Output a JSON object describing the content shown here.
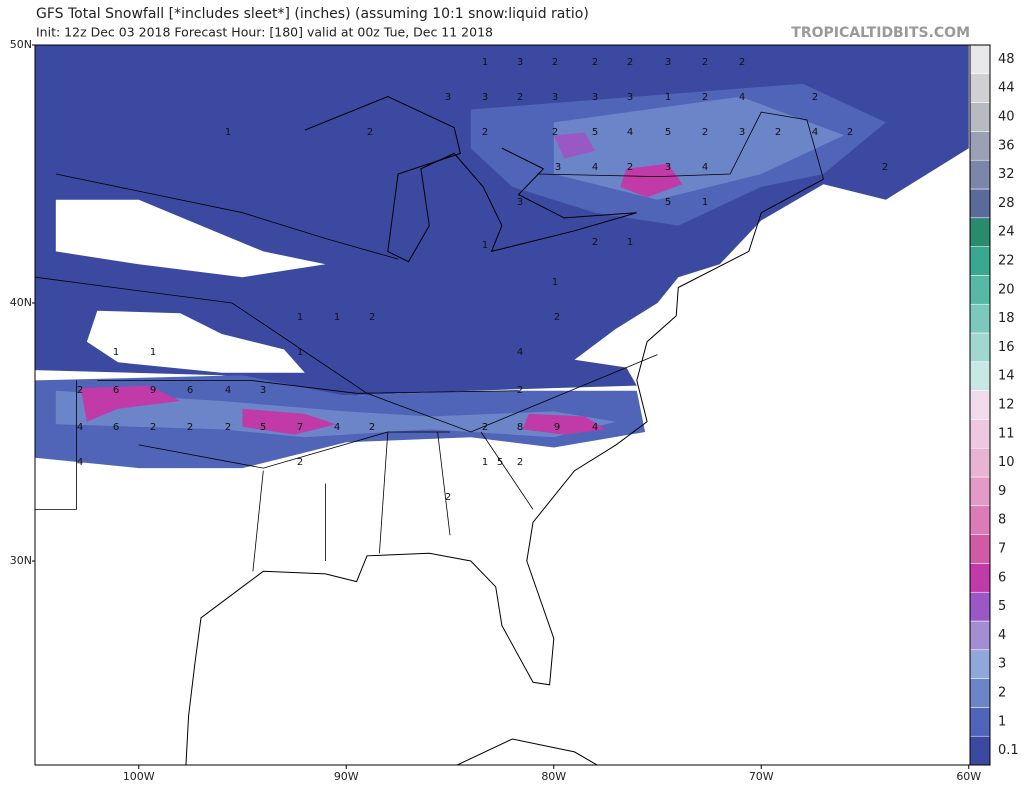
{
  "header": {
    "title": "GFS Total Snowfall [*includes sleet*] (inches) (assuming 10:1 snow:liquid ratio)",
    "subtitle": "Init: 12z Dec 03 2018   Forecast Hour: [180]   valid at 00z Tue, Dec 11 2018",
    "site": "TROPICALTIDBITS.COM"
  },
  "axes": {
    "lat_labels": [
      "50N",
      "40N",
      "30N"
    ],
    "lon_labels": [
      "100W",
      "90W",
      "80W",
      "70W",
      "60W"
    ]
  },
  "colorbar": {
    "levels": [
      {
        "label": "0.1",
        "color": "#3b4aa0"
      },
      {
        "label": "1",
        "color": "#5064b8"
      },
      {
        "label": "2",
        "color": "#6c84c8"
      },
      {
        "label": "3",
        "color": "#90a8d8"
      },
      {
        "label": "4",
        "color": "#a48ed2"
      },
      {
        "label": "5",
        "color": "#9a58c4"
      },
      {
        "label": "6",
        "color": "#c03aa8"
      },
      {
        "label": "7",
        "color": "#d05aa6"
      },
      {
        "label": "8",
        "color": "#dc7cb6"
      },
      {
        "label": "9",
        "color": "#e49ac6"
      },
      {
        "label": "10",
        "color": "#e8b4d4"
      },
      {
        "label": "11",
        "color": "#eec8e0"
      },
      {
        "label": "12",
        "color": "#f2dcec"
      },
      {
        "label": "14",
        "color": "#c8e8e4"
      },
      {
        "label": "16",
        "color": "#a0d8d0"
      },
      {
        "label": "18",
        "color": "#7cc8bc"
      },
      {
        "label": "20",
        "color": "#58b8a6"
      },
      {
        "label": "22",
        "color": "#3aa88e"
      },
      {
        "label": "24",
        "color": "#2a8a6c"
      },
      {
        "label": "28",
        "color": "#5a6a9a"
      },
      {
        "label": "32",
        "color": "#7c86a8"
      },
      {
        "label": "36",
        "color": "#9ca0b4"
      },
      {
        "label": "40",
        "color": "#b8bac2"
      },
      {
        "label": "44",
        "color": "#d0d0d4"
      },
      {
        "label": "48",
        "color": "#e8e8ea"
      }
    ]
  },
  "map_labels": [
    "1",
    "3",
    "2",
    "2",
    "2",
    "3",
    "2",
    "2",
    "3",
    "3",
    "2",
    "3",
    "3",
    "3",
    "1",
    "2",
    "4",
    "2",
    "2",
    "2",
    "2",
    "5",
    "4",
    "5",
    "2",
    "3",
    "2",
    "4",
    "2",
    "1",
    "3",
    "4",
    "2",
    "3",
    "4",
    "2",
    "3",
    "5",
    "1",
    "1",
    "2",
    "1",
    "1",
    "1",
    "1",
    "2",
    "2",
    "1",
    "1",
    "1",
    "4",
    "2",
    "6",
    "9",
    "6",
    "4",
    "3",
    "2",
    "4",
    "6",
    "2",
    "2",
    "2",
    "5",
    "7",
    "4",
    "2",
    "2",
    "8",
    "9",
    "4",
    "4",
    "2",
    "1",
    "5",
    "2",
    "2"
  ]
}
